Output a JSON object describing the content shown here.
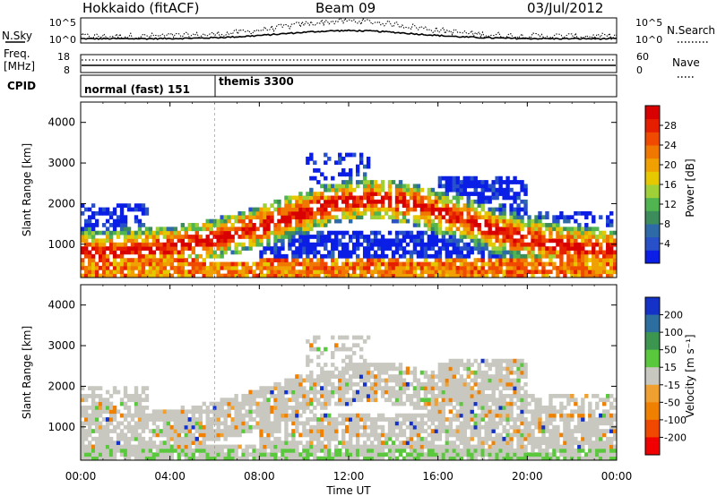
{
  "header": {
    "station": "Hokkaido (fitACF)",
    "beam": "Beam 09",
    "date": "03/Jul/2012"
  },
  "strip_panels": {
    "nsky_label": "N.Sky",
    "nsky_ticks": [
      "10^5",
      "10^0"
    ],
    "nsearch_label": "N.Search",
    "nsearch_ticks": [
      "10^5",
      "10^0"
    ],
    "freq_label": "Freq.",
    "freq_unit": "[MHz]",
    "freq_ticks": [
      "18",
      "8"
    ],
    "nave_label": "Nave",
    "nave_ticks": [
      "60",
      "0"
    ],
    "cpid_label": "CPID",
    "cpid_segments": [
      {
        "label": "normal (fast) 151",
        "start_hour": 0
      },
      {
        "label": "themis 3300",
        "start_hour": 6
      }
    ]
  },
  "chart_data": [
    {
      "type": "heatmap",
      "name": "power-panel",
      "ylabel": "Slant Range [km]",
      "y_ticks": [
        "1000",
        "2000",
        "3000",
        "4000"
      ],
      "yrange": [
        180,
        4500
      ],
      "colorbar_label": "Power [dB]",
      "colorbar_ticks": [
        "4",
        "8",
        "12",
        "16",
        "20",
        "24",
        "28"
      ],
      "colors": [
        "#0a1ee6",
        "#2850c8",
        "#2e6aa8",
        "#3d8c5c",
        "#50b450",
        "#a0d038",
        "#e6c800",
        "#f0a000",
        "#f07800",
        "#ef4a00",
        "#e61e00",
        "#d80000"
      ]
    },
    {
      "type": "heatmap",
      "name": "velocity-panel",
      "ylabel": "Slant Range [km]",
      "y_ticks": [
        "1000",
        "2000",
        "3000",
        "4000"
      ],
      "yrange": [
        180,
        4500
      ],
      "colorbar_label": "Velocity [m s⁻¹]",
      "colorbar_ticks": [
        "200",
        "100",
        "50",
        "15",
        "-15",
        "-50",
        "-100",
        "-200"
      ],
      "colors": [
        "#1432c8",
        "#2d6ea0",
        "#3c9650",
        "#5ac83c",
        "#c8c8c0",
        "#f0a030",
        "#f08000",
        "#f04800",
        "#f00000"
      ]
    }
  ],
  "time_axis": {
    "label": "Time UT",
    "ticks": [
      "00:00",
      "04:00",
      "08:00",
      "12:00",
      "16:00",
      "20:00",
      "00:00"
    ],
    "xrange_hours": [
      0,
      24
    ]
  }
}
